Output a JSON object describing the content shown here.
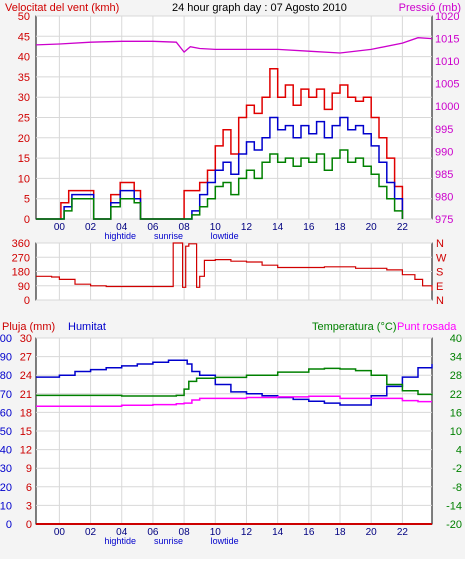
{
  "colors": {
    "wind": "#e00000",
    "gust_avg": "#0000cc",
    "wind_min": "#008000",
    "pressure": "#cc00cc",
    "direction": "#d00000",
    "rain": "#cc0000",
    "humidity": "#0000cc",
    "temperature": "#008000",
    "dewpoint": "#ff00ff",
    "axis_left": "#d00000",
    "axis_right": "#cc00cc",
    "axis_blue": "#0000cc",
    "axis_green": "#008000",
    "grid": "#d8d8d8",
    "tide_label": "#0000cc"
  },
  "chart_data": [
    {
      "type": "line",
      "title": "24 hour graph day : 07 Agosto 2010",
      "left_label": "Velocitat del vent (kmh)",
      "right_label": "Pressió (mb)",
      "x_ticks": [
        "00",
        "02",
        "04",
        "06",
        "08",
        "10",
        "12",
        "14",
        "16",
        "18",
        "20",
        "22"
      ],
      "x_range": [
        -1.5,
        23.9
      ],
      "y_left_ticks": [
        "0",
        "5",
        "10",
        "15",
        "20",
        "25",
        "30",
        "35",
        "40",
        "45",
        "50"
      ],
      "y_left_range": [
        0,
        50
      ],
      "y_right_ticks": [
        "975",
        "980",
        "985",
        "990",
        "995",
        "1000",
        "1005",
        "1010",
        "1015",
        "1020"
      ],
      "y_right_range": [
        975,
        1020
      ],
      "grid": true,
      "events": [
        "hightide",
        "sunrise",
        "lowtide"
      ],
      "event_hours": [
        3.9,
        7.0,
        10.6
      ],
      "series": [
        {
          "role": "wind_max",
          "x": [
            -1.5,
            -0.1,
            0.1,
            0.6,
            1.8,
            2.2,
            2.4,
            2.8,
            3.3,
            3.9,
            4.8,
            5.2,
            7.5,
            8.0,
            8.5,
            9.0,
            9.5,
            10.0,
            10.5,
            11.0,
            11.5,
            12.0,
            12.5,
            13.0,
            13.5,
            14.0,
            14.5,
            15.0,
            15.5,
            16.0,
            16.5,
            17.0,
            17.5,
            18.0,
            18.5,
            19.0,
            19.5,
            20.0,
            20.5,
            21.0,
            21.5,
            22.0
          ],
          "y": [
            0,
            0,
            4,
            7,
            7,
            0,
            0,
            0,
            6,
            9,
            7,
            0,
            0,
            7,
            7,
            9,
            12,
            18,
            22,
            16,
            25,
            28,
            26,
            30,
            37,
            30,
            33,
            28,
            32,
            30,
            32,
            27,
            31,
            33,
            30,
            29,
            30,
            25,
            20,
            15,
            8,
            0
          ]
        },
        {
          "role": "wind_avg",
          "x": [
            -1.5,
            -0.1,
            0.3,
            0.8,
            1.8,
            2.2,
            2.4,
            2.8,
            3.3,
            3.9,
            4.8,
            5.2,
            7.5,
            8.0,
            8.5,
            9.0,
            9.5,
            10.0,
            10.5,
            11.0,
            11.5,
            12.0,
            12.5,
            13.0,
            13.5,
            14.0,
            14.5,
            15.0,
            15.5,
            16.0,
            16.5,
            17.0,
            17.5,
            18.0,
            18.5,
            19.0,
            19.5,
            20.0,
            20.5,
            21.0,
            21.5,
            22.0
          ],
          "y": [
            0,
            0,
            3,
            6,
            6,
            0,
            0,
            0,
            4,
            7,
            5,
            0,
            0,
            0,
            2,
            6,
            9,
            12,
            14,
            11,
            16,
            19,
            17,
            20,
            25,
            22,
            23,
            20,
            23,
            21,
            24,
            20,
            23,
            25,
            22,
            23,
            21,
            18,
            14,
            9,
            5,
            0
          ]
        },
        {
          "role": "wind_min",
          "x": [
            -1.5,
            -0.1,
            0.3,
            0.8,
            1.8,
            2.2,
            2.4,
            2.8,
            3.3,
            3.9,
            4.8,
            5.2,
            7.5,
            8.0,
            8.5,
            9.0,
            9.5,
            10.0,
            10.5,
            11.0,
            11.5,
            12.0,
            12.5,
            13.0,
            13.5,
            14.0,
            14.5,
            15.0,
            15.5,
            16.0,
            16.5,
            17.0,
            17.5,
            18.0,
            18.5,
            19.0,
            19.5,
            20.0,
            20.5,
            21.0,
            21.5,
            22.0
          ],
          "y": [
            0,
            0,
            2,
            5,
            5,
            0,
            0,
            0,
            3,
            5,
            4,
            0,
            0,
            0,
            1,
            3,
            5,
            8,
            9,
            6,
            10,
            12,
            10,
            14,
            16,
            14,
            15,
            13,
            15,
            14,
            16,
            12,
            15,
            17,
            14,
            15,
            13,
            11,
            8,
            5,
            2,
            0
          ]
        },
        {
          "role": "pressure",
          "x": [
            -1.5,
            0,
            2,
            4,
            6,
            7.5,
            8.0,
            8.4,
            9,
            10,
            12,
            14,
            16,
            18,
            20,
            22,
            23,
            23.9
          ],
          "y": [
            1013.6,
            1013.8,
            1014.2,
            1014.4,
            1014.4,
            1014.2,
            1012.0,
            1013.2,
            1012.8,
            1012.6,
            1012.6,
            1012.6,
            1012.2,
            1011.8,
            1012.6,
            1014.0,
            1015.2,
            1015.0
          ]
        }
      ]
    },
    {
      "type": "line",
      "left_label": "",
      "right_label": "",
      "x_range": [
        -1.5,
        23.9
      ],
      "y_ticks": [
        "360",
        "270",
        "180",
        "90",
        "0"
      ],
      "y_range": [
        0,
        360
      ],
      "compass_labels": [
        "N",
        "W",
        "S",
        "E",
        "N"
      ],
      "grid": true,
      "series": [
        {
          "role": "direction",
          "x": [
            -1.5,
            -0.5,
            0,
            1,
            2,
            3,
            4,
            5,
            6,
            7,
            7.2,
            7.3,
            7.8,
            7.9,
            8.0,
            8.1,
            8.3,
            8.5,
            8.8,
            9.0,
            9.3,
            9.6,
            10,
            11,
            12,
            13,
            14,
            15,
            16,
            17,
            18,
            19,
            20,
            21,
            22,
            22.8,
            23.3,
            23.9
          ],
          "y": [
            150,
            145,
            130,
            100,
            90,
            85,
            85,
            85,
            85,
            85,
            85,
            370,
            370,
            80,
            80,
            340,
            355,
            355,
            80,
            150,
            250,
            250,
            255,
            245,
            240,
            220,
            205,
            205,
            205,
            210,
            210,
            200,
            200,
            190,
            160,
            130,
            90,
            60
          ]
        }
      ]
    },
    {
      "type": "line",
      "left_label": "Pluja (mm)",
      "mid_label": "Humitat",
      "right_label": "Temperatura (°C)",
      "right_label2": "Punt rosada",
      "x_ticks": [
        "00",
        "02",
        "04",
        "06",
        "08",
        "10",
        "12",
        "14",
        "16",
        "18",
        "20",
        "22"
      ],
      "x_range": [
        -1.5,
        23.9
      ],
      "rain_ticks": [
        "0",
        "3",
        "6",
        "9",
        "12",
        "15",
        "18",
        "21",
        "24",
        "27",
        "30"
      ],
      "rain_range": [
        0,
        30
      ],
      "humidity_ticks": [
        "0",
        "10",
        "20",
        "30",
        "40",
        "50",
        "60",
        "70",
        "80",
        "90",
        "100"
      ],
      "humidity_range": [
        0,
        100
      ],
      "temp_ticks": [
        "-20",
        "-14",
        "-8",
        "-2",
        "4",
        "10",
        "16",
        "22",
        "28",
        "34",
        "40"
      ],
      "temp_range": [
        -20,
        40
      ],
      "grid": true,
      "events": [
        "hightide",
        "sunrise",
        "lowtide"
      ],
      "event_hours": [
        3.9,
        7.0,
        10.6
      ],
      "series": [
        {
          "role": "rain",
          "x": [
            -1.5,
            23.9
          ],
          "y": [
            0,
            0
          ]
        },
        {
          "role": "humidity",
          "x": [
            -1.5,
            0,
            1,
            2,
            3,
            4,
            5,
            6,
            7,
            7.8,
            8.2,
            8.5,
            9,
            10,
            11,
            12,
            13,
            14,
            15,
            16,
            17,
            18,
            19,
            20,
            21,
            22,
            23,
            23.9
          ],
          "y": [
            79,
            80,
            82,
            83,
            84,
            85,
            86,
            87,
            88,
            88,
            86,
            82,
            80,
            75,
            71,
            70,
            69,
            68,
            67,
            66,
            65,
            64,
            64,
            69,
            74,
            79,
            84,
            86
          ]
        },
        {
          "role": "temperature",
          "x": [
            -1.5,
            0,
            2,
            4,
            6,
            7.5,
            8.0,
            8.3,
            8.8,
            10,
            12,
            14,
            16,
            17,
            18,
            19,
            20,
            21,
            22,
            23,
            23.9
          ],
          "y": [
            21.5,
            21.5,
            21.5,
            21.3,
            21.3,
            21.5,
            23.5,
            26,
            27,
            27.3,
            28,
            29,
            30,
            30.2,
            30,
            29.5,
            28,
            25,
            23,
            21.8,
            21.5
          ]
        },
        {
          "role": "dewpoint",
          "x": [
            -1.5,
            0,
            2,
            4,
            6,
            7.5,
            8,
            8.5,
            9,
            10,
            12,
            14,
            16,
            18,
            20,
            22,
            23,
            23.9
          ],
          "y": [
            18,
            18,
            18,
            18.3,
            18.5,
            18.8,
            19,
            20,
            20.5,
            20.5,
            20.8,
            21,
            21.2,
            20.5,
            20.5,
            19.8,
            19.5,
            19.5
          ]
        }
      ]
    }
  ]
}
